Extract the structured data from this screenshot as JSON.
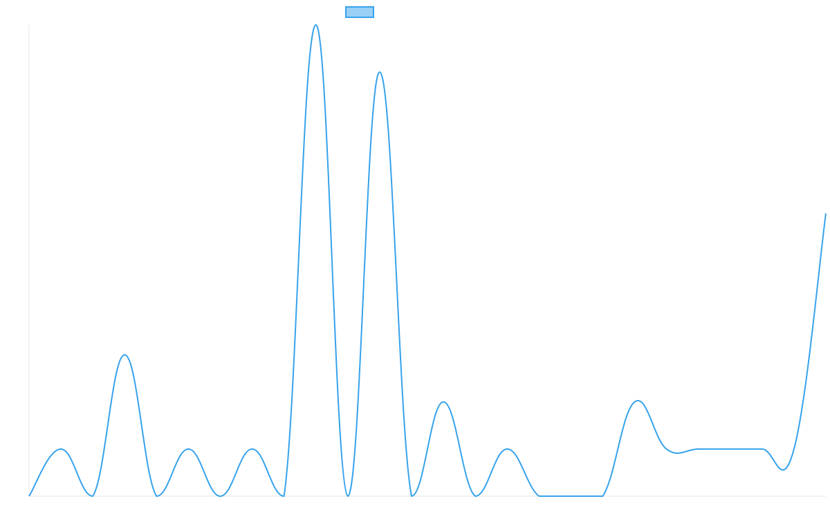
{
  "chart_data": {
    "type": "line",
    "title": "",
    "xlabel": "",
    "ylabel": "",
    "grid": false,
    "legend": "top-center",
    "x": [
      0,
      1,
      2,
      3,
      4,
      5,
      6,
      7,
      8,
      9,
      10,
      11,
      12,
      13,
      14,
      15,
      16,
      17,
      18,
      19,
      20,
      21,
      22,
      23,
      24,
      25
    ],
    "ylim": [
      0,
      10
    ],
    "series": [
      {
        "name": "",
        "color": "#36a2eb",
        "values": [
          0,
          1,
          0,
          3,
          0,
          1,
          0,
          1,
          0,
          10,
          0,
          9,
          0,
          2,
          0,
          1,
          0,
          0,
          0,
          2,
          1,
          1,
          1,
          1,
          1,
          6
        ]
      }
    ]
  }
}
